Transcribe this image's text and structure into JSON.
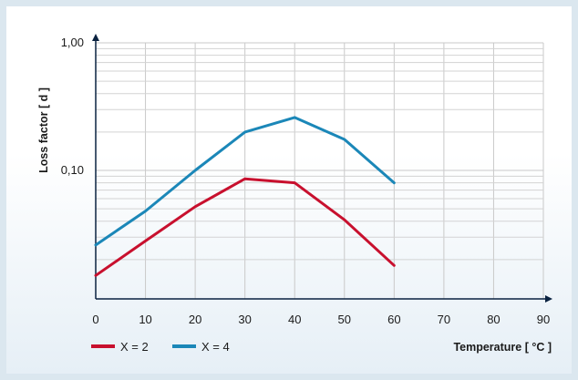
{
  "chart_data": {
    "type": "line",
    "title": "",
    "xlabel": "Temperature [ °C ]",
    "ylabel": "Loss factor [ d ]",
    "xlim": [
      0,
      90
    ],
    "ylim": [
      0.01,
      1.0
    ],
    "yscale": "log",
    "x_ticks": [
      0,
      10,
      20,
      30,
      40,
      50,
      60,
      70,
      80,
      90
    ],
    "y_tick_labels": [
      {
        "value": 1.0,
        "label": "1,00"
      },
      {
        "value": 0.1,
        "label": "0,10"
      }
    ],
    "grid": true,
    "legend_position": "bottom-left",
    "series": [
      {
        "name": "X = 2",
        "color": "#c8102e",
        "x": [
          0,
          10,
          20,
          30,
          40,
          50,
          60
        ],
        "y": [
          0.015,
          0.028,
          0.052,
          0.086,
          0.08,
          0.041,
          0.018
        ]
      },
      {
        "name": "X = 4",
        "color": "#1b87b8",
        "x": [
          0,
          10,
          20,
          30,
          40,
          50,
          60
        ],
        "y": [
          0.026,
          0.048,
          0.1,
          0.2,
          0.26,
          0.175,
          0.08
        ]
      }
    ]
  }
}
